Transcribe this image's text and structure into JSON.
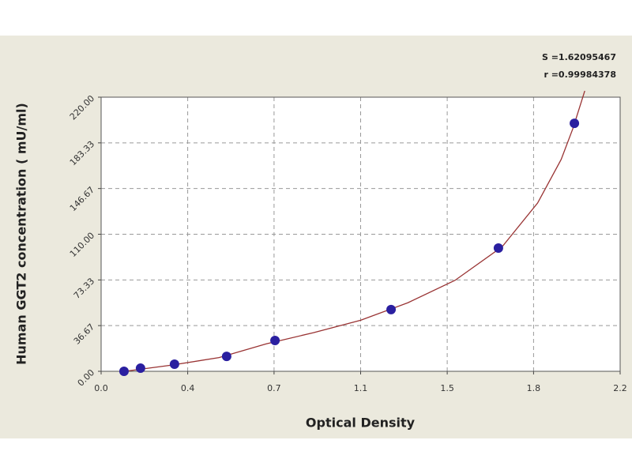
{
  "chart_data": {
    "type": "scatter",
    "x_label": "Optical Density",
    "y_label": "Human GGT2 concentration ( mU/ml)",
    "annotations": [
      "S =1.62095467",
      "r =0.99984378"
    ],
    "xlim": [
      0,
      2.2
    ],
    "xticks": [
      {
        "value": 0,
        "label": "0.0"
      },
      {
        "value": 0.367,
        "label": "0.4"
      },
      {
        "value": 0.733,
        "label": "0.7"
      },
      {
        "value": 1.1,
        "label": "1.1"
      },
      {
        "value": 1.467,
        "label": "1.5"
      },
      {
        "value": 1.833,
        "label": "1.8"
      },
      {
        "value": 2.2,
        "label": "2.2"
      }
    ],
    "ylim": [
      0,
      220
    ],
    "yticks": [
      {
        "value": 0,
        "label": "0.00"
      },
      36.67,
      73.33,
      {
        "value": 110,
        "label": "110.00"
      },
      146.67,
      183.33,
      {
        "value": 220,
        "label": "220.00"
      }
    ],
    "grid": true,
    "points": {
      "color": "#2a1fa0",
      "x": [
        0.097,
        0.167,
        0.311,
        0.532,
        0.737,
        1.229,
        1.684,
        2.006
      ],
      "values": [
        0,
        2.5,
        5.7,
        12,
        24.7,
        49.5,
        98.9,
        199
      ]
    },
    "fit": {
      "color": "#993333",
      "x": [
        0.1,
        0.3,
        0.5,
        0.7,
        0.9,
        1.1,
        1.3,
        1.5,
        1.7,
        1.85,
        1.95,
        2.0,
        2.05
      ],
      "values": [
        0,
        5,
        11,
        22,
        31,
        41,
        55,
        73,
        100,
        135,
        170,
        195,
        225
      ]
    }
  }
}
